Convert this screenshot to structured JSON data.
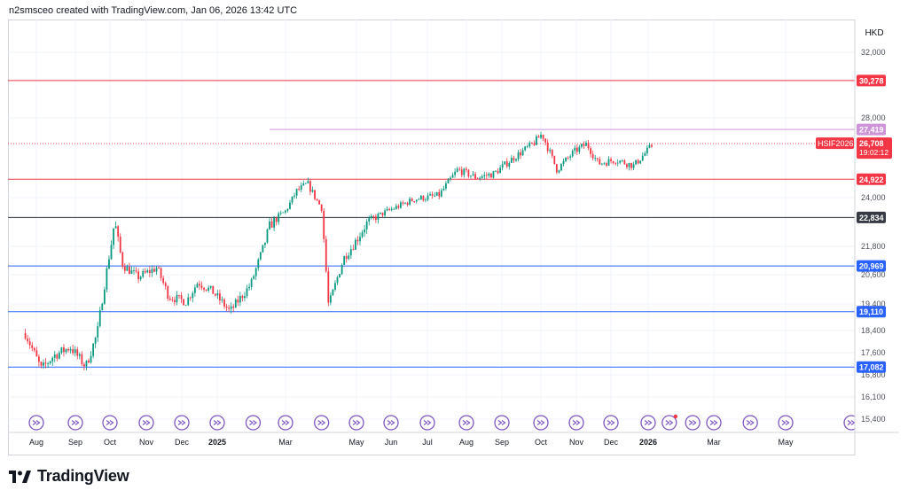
{
  "header": {
    "caption": "n2smsceo created with TradingView.com, Jan 06, 2026 13:42 UTC"
  },
  "brand": {
    "name": "TradingView"
  },
  "chart_data": {
    "type": "candlestick",
    "symbol": "HSIF2026",
    "currency": "HKD",
    "last_price": "26,708",
    "countdown": "19:02:12",
    "y_ticks": [
      "32,000",
      "28,000",
      "24,000",
      "22,800",
      "21,800",
      "20,600",
      "19,400",
      "18,400",
      "17,600",
      "16,800",
      "16,100",
      "15,400"
    ],
    "y_tick_values": [
      32000,
      28000,
      24000,
      22800,
      21800,
      20600,
      19400,
      18400,
      17600,
      16800,
      16100,
      15400
    ],
    "x_labels": [
      "Aug",
      "Sep",
      "Oct",
      "Nov",
      "Dec",
      "2025",
      "Mar",
      "May",
      "Jun",
      "Jul",
      "Aug",
      "Sep",
      "Oct",
      "Nov",
      "Dec",
      "2026",
      "Mar",
      "May"
    ],
    "x_label_bold": [
      "2025",
      "2026"
    ],
    "levels": [
      {
        "value": 30278,
        "label": "30,278",
        "color": "#f23645"
      },
      {
        "value": 27419,
        "label": "27,419",
        "color": "#ce93d8"
      },
      {
        "value": 24922,
        "label": "24,922",
        "color": "#f23645"
      },
      {
        "value": 22834,
        "label": "22,834",
        "color": "#363a45"
      },
      {
        "value": 20969,
        "label": "20,969",
        "color": "#2962ff"
      },
      {
        "value": 19110,
        "label": "19,110",
        "color": "#2962ff"
      },
      {
        "value": 17082,
        "label": "17,082",
        "color": "#2962ff"
      }
    ],
    "price_path": [
      {
        "date": "2024-07-20",
        "value": 18300
      },
      {
        "date": "2024-08-05",
        "value": 17000
      },
      {
        "date": "2024-08-15",
        "value": 17500
      },
      {
        "date": "2024-08-28",
        "value": 17800
      },
      {
        "date": "2024-09-10",
        "value": 17100
      },
      {
        "date": "2024-09-20",
        "value": 18300
      },
      {
        "date": "2024-09-30",
        "value": 21300
      },
      {
        "date": "2024-10-05",
        "value": 22700
      },
      {
        "date": "2024-10-12",
        "value": 21000
      },
      {
        "date": "2024-10-25",
        "value": 20500
      },
      {
        "date": "2024-11-10",
        "value": 20900
      },
      {
        "date": "2024-11-20",
        "value": 19700
      },
      {
        "date": "2024-12-05",
        "value": 19500
      },
      {
        "date": "2024-12-15",
        "value": 20300
      },
      {
        "date": "2024-12-28",
        "value": 19900
      },
      {
        "date": "2025-01-12",
        "value": 19100
      },
      {
        "date": "2025-01-30",
        "value": 20200
      },
      {
        "date": "2025-02-15",
        "value": 22500
      },
      {
        "date": "2025-03-01",
        "value": 23200
      },
      {
        "date": "2025-03-10",
        "value": 24300
      },
      {
        "date": "2025-03-20",
        "value": 24700
      },
      {
        "date": "2025-04-01",
        "value": 23400
      },
      {
        "date": "2025-04-07",
        "value": 19300
      },
      {
        "date": "2025-04-20",
        "value": 21300
      },
      {
        "date": "2025-05-10",
        "value": 22600
      },
      {
        "date": "2025-06-01",
        "value": 23300
      },
      {
        "date": "2025-06-20",
        "value": 23900
      },
      {
        "date": "2025-07-10",
        "value": 24100
      },
      {
        "date": "2025-07-25",
        "value": 25400
      },
      {
        "date": "2025-08-10",
        "value": 25000
      },
      {
        "date": "2025-08-25",
        "value": 25200
      },
      {
        "date": "2025-09-10",
        "value": 26000
      },
      {
        "date": "2025-09-25",
        "value": 26700
      },
      {
        "date": "2025-10-02",
        "value": 27200
      },
      {
        "date": "2025-10-15",
        "value": 25400
      },
      {
        "date": "2025-10-30",
        "value": 26300
      },
      {
        "date": "2025-11-10",
        "value": 26700
      },
      {
        "date": "2025-11-20",
        "value": 25700
      },
      {
        "date": "2025-12-05",
        "value": 25900
      },
      {
        "date": "2025-12-20",
        "value": 25600
      },
      {
        "date": "2026-01-06",
        "value": 26708
      }
    ]
  }
}
